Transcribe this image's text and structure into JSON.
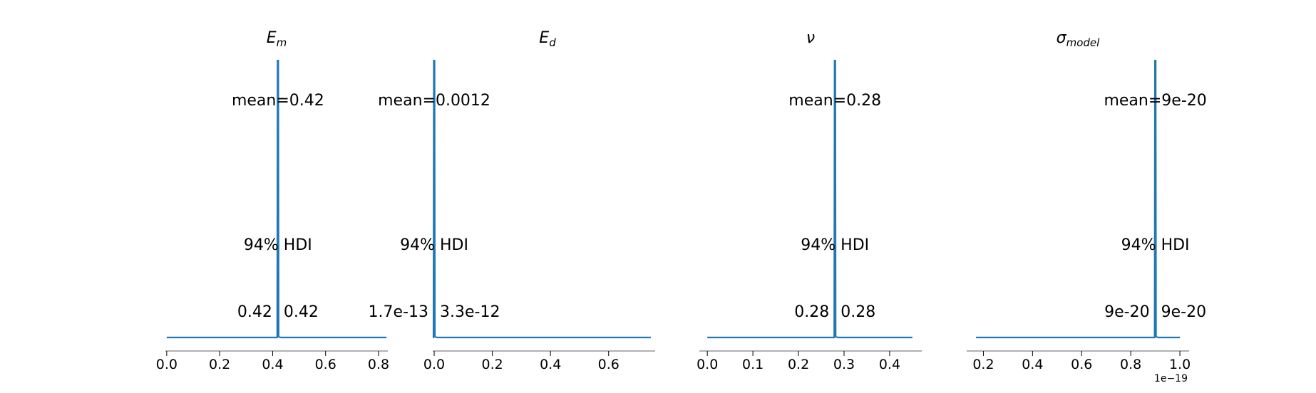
{
  "chart_data": [
    {
      "type": "line",
      "title": "E",
      "title_sub": "m",
      "xlim": [
        -0.005,
        0.835
      ],
      "baseline_x": [
        0.0,
        0.83
      ],
      "spike_x": 0.42,
      "mean_label": "mean=0.42",
      "hdi_label": "94% HDI",
      "hdi_low": "0.42",
      "hdi_high": "0.42",
      "ticks": [
        0.0,
        0.2,
        0.4,
        0.6,
        0.8
      ],
      "tick_labels": [
        "0.0",
        "0.2",
        "0.4",
        "0.6",
        "0.8"
      ],
      "offset_label": ""
    },
    {
      "type": "line",
      "title": "E",
      "title_sub": "d",
      "xlim": [
        -0.005,
        0.76
      ],
      "baseline_x": [
        0.0,
        0.745
      ],
      "spike_x": 0.0,
      "mean_label": "mean=0.0012",
      "hdi_label": "94% HDI",
      "hdi_low": "1.7e-13",
      "hdi_high": "3.3e-12",
      "ticks": [
        0.0,
        0.2,
        0.4,
        0.6
      ],
      "tick_labels": [
        "0.0",
        "0.2",
        "0.4",
        "0.6"
      ],
      "offset_label": ""
    },
    {
      "type": "line",
      "title": "ν",
      "title_sub": "",
      "xlim": [
        -0.0175,
        0.4705
      ],
      "baseline_x": [
        0.0,
        0.45
      ],
      "spike_x": 0.28,
      "mean_label": "mean=0.28",
      "hdi_label": "94% HDI",
      "hdi_low": "0.28",
      "hdi_high": "0.28",
      "ticks": [
        0.0,
        0.1,
        0.2,
        0.3,
        0.4
      ],
      "tick_labels": [
        "0.0",
        "0.1",
        "0.2",
        "0.3",
        "0.4"
      ],
      "offset_label": ""
    },
    {
      "type": "line",
      "title": "σ",
      "title_sub": "model",
      "xlim": [
        0.132,
        1.0375
      ],
      "baseline_x": [
        0.17,
        1.0
      ],
      "spike_x": 0.9,
      "mean_label": "mean=9e-20",
      "hdi_label": "94% HDI",
      "hdi_low": "9e-20",
      "hdi_high": "9e-20",
      "ticks": [
        0.2,
        0.4,
        0.6,
        0.8,
        1.0
      ],
      "tick_labels": [
        "0.2",
        "0.4",
        "0.6",
        "0.8",
        "1.0"
      ],
      "offset_label": "1e−19"
    }
  ],
  "colors": {
    "line": "#1f77b4",
    "axis": "#808080"
  }
}
